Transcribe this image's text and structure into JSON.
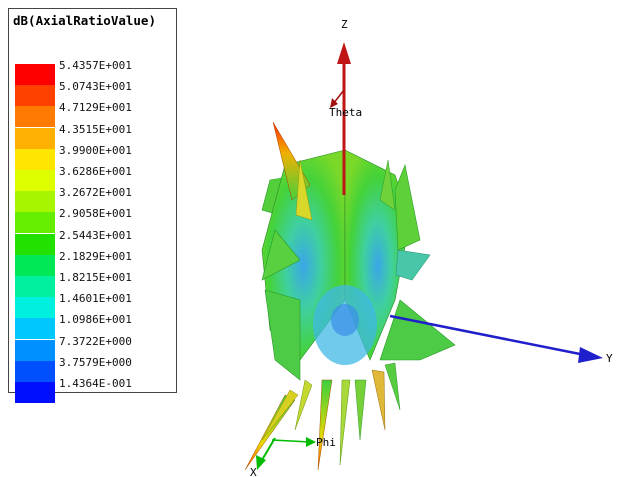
{
  "legend": {
    "title": "dB(AxialRatioValue)",
    "ticks": [
      "5.4357E+001",
      "5.0743E+001",
      "4.7129E+001",
      "4.3515E+001",
      "3.9900E+001",
      "3.6286E+001",
      "3.2672E+001",
      "2.9058E+001",
      "2.5443E+001",
      "2.1829E+001",
      "1.8215E+001",
      "1.4601E+001",
      "1.0986E+001",
      "7.3722E+000",
      "3.7579E+000",
      "1.4364E-001"
    ],
    "colors": [
      "#ff0000",
      "#ff4000",
      "#ff7a00",
      "#ffb000",
      "#ffe600",
      "#ddff00",
      "#a8f500",
      "#66ee00",
      "#22e000",
      "#00e855",
      "#00f0a0",
      "#00f0e0",
      "#00c8ff",
      "#0090ff",
      "#0050ff",
      "#0010ff"
    ]
  },
  "axes": {
    "z_label": "Z",
    "y_label": "Y",
    "x_label": "X",
    "theta_label": "Theta",
    "phi_label": "Phi"
  },
  "colors": {
    "z_axis": "#c01515",
    "y_axis": "#1f1fcc",
    "x_axis": "#00bb00",
    "surface_main": "#3ecf3e",
    "surface_core": "#3fb8e6"
  }
}
